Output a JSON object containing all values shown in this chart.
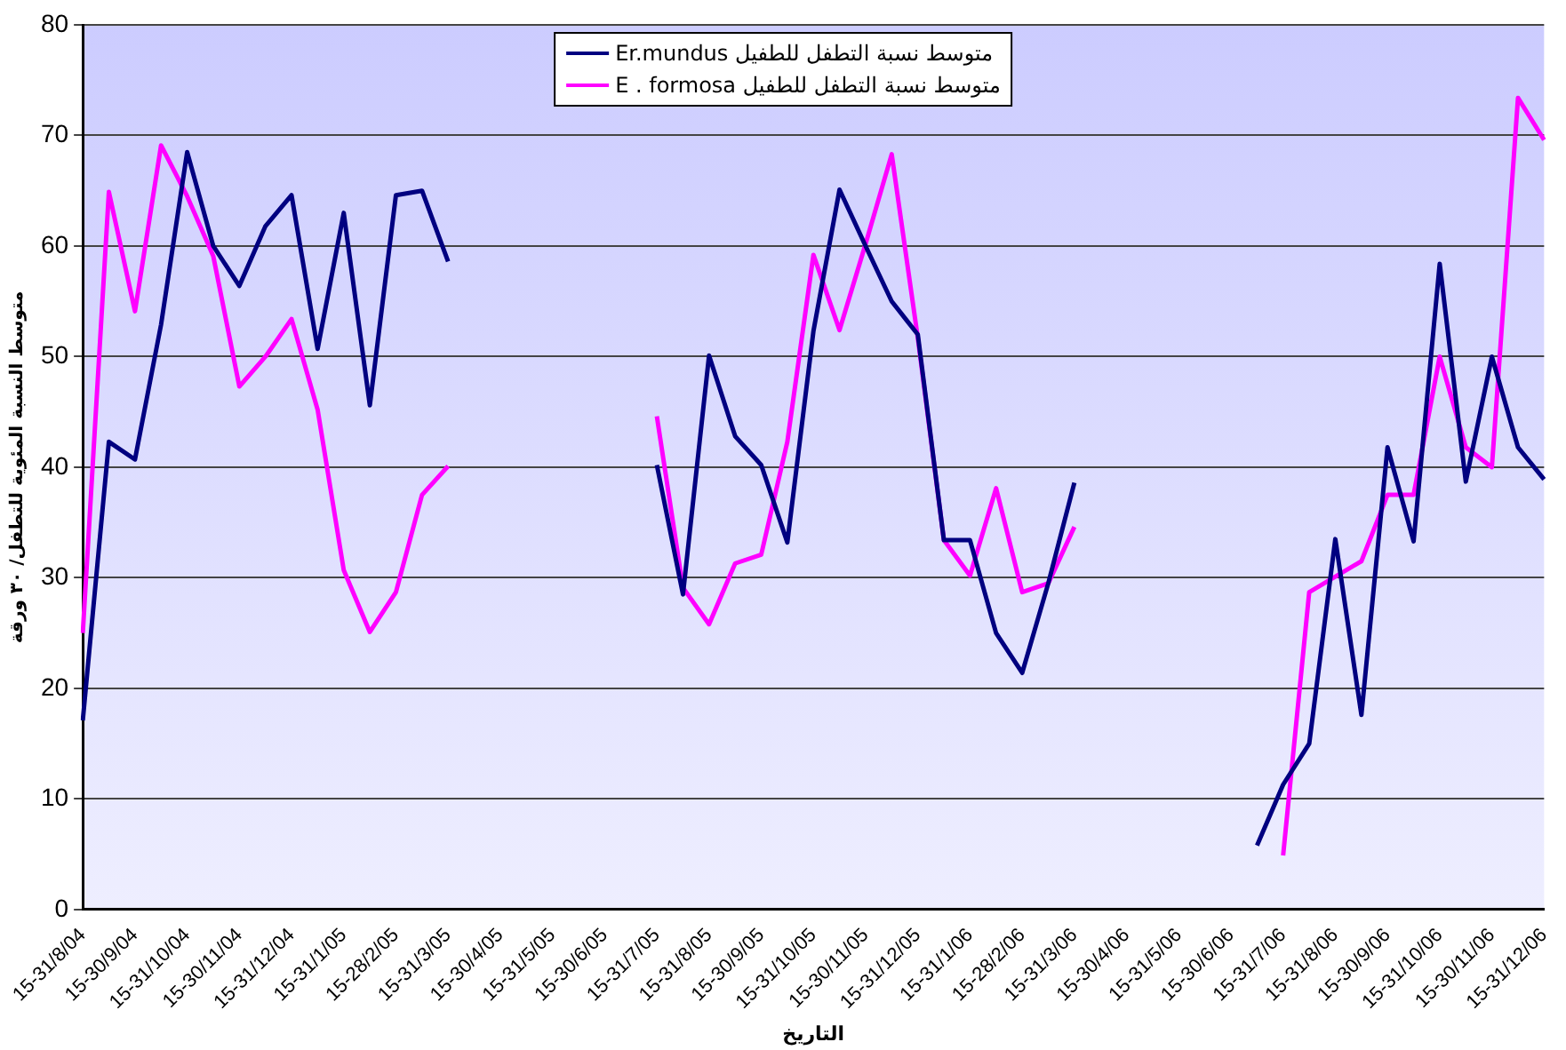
{
  "chart_data": {
    "type": "line",
    "xlabel": "التاريخ",
    "ylabel": "متوسط النسبة المئوية للتطفل/ ٣٠ ورقة",
    "categories": [
      "15-31/8/04",
      null,
      "15-30/9/04",
      null,
      "15-31/10/04",
      null,
      "15-30/11/04",
      null,
      "15-31/12/04",
      null,
      "15-31/1/05",
      null,
      "15-28/2/05",
      null,
      "15-31/3/05",
      null,
      "15-30/4/05",
      null,
      "15-31/5/05",
      null,
      "15-30/6/05",
      null,
      "15-31/7/05",
      null,
      "15-31/8/05",
      null,
      "15-30/9/05",
      null,
      "15-31/10/05",
      null,
      "15-30/11/05",
      null,
      "15-31/12/05",
      null,
      "15-31/1/06",
      null,
      "15-28/2/06",
      null,
      "15-31/3/06",
      null,
      "15-30/4/06",
      null,
      "15-31/5/06",
      null,
      "15-30/6/06",
      null,
      "15-31/7/06",
      null,
      "15-31/8/06",
      null,
      "15-30/9/06",
      null,
      "15-31/10/06",
      null,
      "15-30/11/06",
      null,
      "15-31/12/06"
    ],
    "series": [
      {
        "name": "متوسط نسبة التطفل للطفيل Er.mundus",
        "color": "#000080",
        "values": [
          17.1,
          42.3,
          40.7,
          52.9,
          68.5,
          60,
          56.4,
          61.8,
          64.6,
          50.7,
          63,
          45.6,
          64.6,
          65,
          58.6,
          null,
          null,
          null,
          null,
          null,
          null,
          null,
          40.2,
          28.5,
          50.1,
          42.8,
          40.2,
          33.2,
          52.3,
          65.1,
          60,
          55,
          52,
          33.4,
          33.4,
          25,
          21.4,
          29.5,
          38.6,
          null,
          null,
          null,
          null,
          null,
          null,
          5.8,
          11.3,
          15,
          33.5,
          17.6,
          41.8,
          33.3,
          58.4,
          38.7,
          50,
          41.8,
          38.9
        ]
      },
      {
        "name": "متوسط نسبة التطفل للطفيل E . formosa",
        "color": "#ff00ff",
        "values": [
          25,
          64.9,
          54.1,
          69.1,
          64.5,
          59.1,
          47.3,
          50,
          53.4,
          45.2,
          30.7,
          25.1,
          28.7,
          37.5,
          40.1,
          null,
          null,
          null,
          null,
          null,
          null,
          null,
          44.6,
          29.1,
          25.8,
          31.3,
          32.1,
          42.3,
          59.2,
          52.4,
          60.2,
          68.3,
          51.7,
          33.4,
          30.2,
          38.1,
          28.7,
          29.5,
          34.6,
          null,
          null,
          null,
          null,
          null,
          null,
          null,
          4.9,
          28.7,
          30.1,
          31.5,
          37.5,
          37.5,
          50,
          41.8,
          40,
          73.4,
          69.6
        ]
      }
    ],
    "ylim": [
      0,
      80
    ],
    "yticks": [
      0,
      10,
      20,
      30,
      40,
      50,
      60,
      70,
      80
    ],
    "grid": "y",
    "legend": "top",
    "marker": "none",
    "line_style": "solid"
  }
}
